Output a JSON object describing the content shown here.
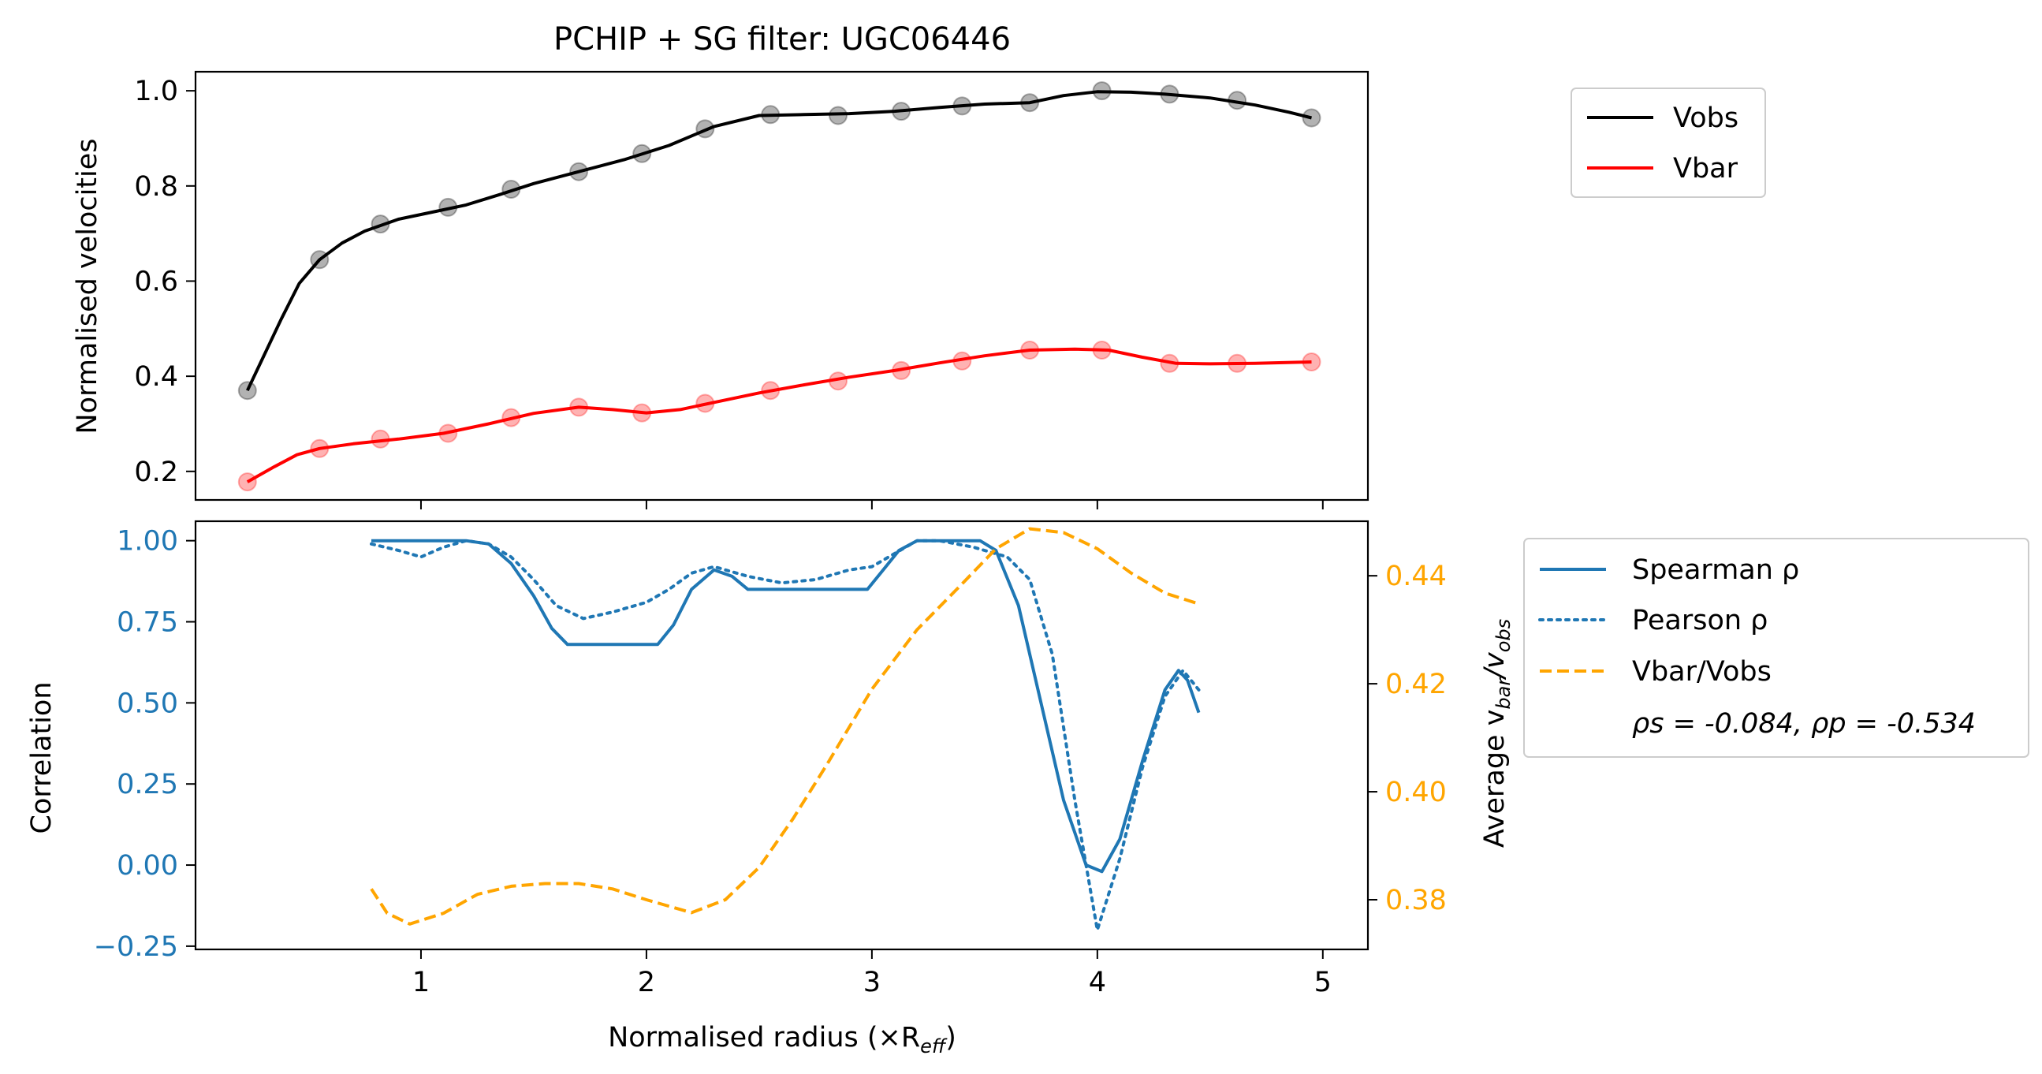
{
  "chart_data": [
    {
      "type": "line",
      "title": "PCHIP + SG filter: UGC06446",
      "xlabel": "",
      "ylabel": "Normalised velocities",
      "xlim": [
        0.0,
        5.2
      ],
      "ylim": [
        0.14,
        1.04
      ],
      "xticks": [
        1,
        2,
        3,
        4,
        5
      ],
      "yticks": [
        0.2,
        0.4,
        0.6,
        0.8,
        1.0
      ],
      "ytick_labels": [
        "0.2",
        "0.4",
        "0.6",
        "0.8",
        "1.0"
      ],
      "grid": false,
      "legend_position": "outside-right-top",
      "legend": [
        "Vobs",
        "Vbar"
      ],
      "series": [
        {
          "name": "Vobs",
          "color": "#000000",
          "style": "solid",
          "points_x": [
            0.23,
            0.55,
            0.82,
            1.12,
            1.4,
            1.7,
            1.98,
            2.26,
            2.55,
            2.85,
            3.13,
            3.4,
            3.7,
            4.02,
            4.32,
            4.62,
            4.95
          ],
          "points_y": [
            0.37,
            0.645,
            0.72,
            0.755,
            0.793,
            0.83,
            0.868,
            0.92,
            0.95,
            0.948,
            0.957,
            0.968,
            0.975,
            1.0,
            0.993,
            0.98,
            0.943
          ],
          "line_x": [
            0.23,
            0.3,
            0.38,
            0.46,
            0.55,
            0.65,
            0.75,
            0.9,
            1.05,
            1.2,
            1.35,
            1.5,
            1.7,
            1.9,
            2.1,
            2.3,
            2.5,
            2.7,
            2.9,
            3.1,
            3.3,
            3.5,
            3.7,
            3.85,
            4.0,
            4.15,
            4.3,
            4.5,
            4.7,
            4.85,
            4.95
          ],
          "line_y": [
            0.37,
            0.44,
            0.52,
            0.595,
            0.645,
            0.68,
            0.705,
            0.73,
            0.745,
            0.76,
            0.782,
            0.805,
            0.83,
            0.855,
            0.885,
            0.925,
            0.948,
            0.95,
            0.952,
            0.957,
            0.965,
            0.972,
            0.975,
            0.99,
            0.998,
            0.997,
            0.993,
            0.985,
            0.97,
            0.955,
            0.943
          ]
        },
        {
          "name": "Vbar",
          "color": "#ff0000",
          "style": "solid",
          "points_x": [
            0.23,
            0.55,
            0.82,
            1.12,
            1.4,
            1.7,
            1.98,
            2.26,
            2.55,
            2.85,
            3.13,
            3.4,
            3.7,
            4.02,
            4.32,
            4.62,
            4.95
          ],
          "points_y": [
            0.178,
            0.248,
            0.268,
            0.28,
            0.313,
            0.335,
            0.323,
            0.343,
            0.37,
            0.39,
            0.412,
            0.432,
            0.455,
            0.455,
            0.427,
            0.427,
            0.43
          ],
          "line_x": [
            0.23,
            0.35,
            0.45,
            0.55,
            0.7,
            0.9,
            1.1,
            1.3,
            1.5,
            1.7,
            1.85,
            2.0,
            2.15,
            2.3,
            2.5,
            2.7,
            2.9,
            3.1,
            3.3,
            3.5,
            3.7,
            3.9,
            4.05,
            4.2,
            4.35,
            4.5,
            4.7,
            4.95
          ],
          "line_y": [
            0.178,
            0.21,
            0.235,
            0.248,
            0.258,
            0.268,
            0.28,
            0.3,
            0.322,
            0.335,
            0.33,
            0.323,
            0.33,
            0.345,
            0.365,
            0.382,
            0.398,
            0.412,
            0.428,
            0.443,
            0.455,
            0.457,
            0.455,
            0.44,
            0.427,
            0.426,
            0.427,
            0.43
          ]
        }
      ]
    },
    {
      "type": "line",
      "title": "",
      "xlabel": "Normalised radius (×R",
      "xlabel_sub": "eff",
      "xlabel_close": ")",
      "ylabel": "Correlation",
      "y2label": "Average v",
      "y2label_sub1": "bar",
      "y2label_mid": "/v",
      "y2label_sub2": "obs",
      "xlim": [
        0.0,
        5.2
      ],
      "ylim": [
        -0.26,
        1.06
      ],
      "y2lim": [
        0.3708,
        0.4501
      ],
      "xticks": [
        1,
        2,
        3,
        4,
        5
      ],
      "xtick_labels": [
        "1",
        "2",
        "3",
        "4",
        "5"
      ],
      "yticks": [
        -0.25,
        0.0,
        0.25,
        0.5,
        0.75,
        1.0
      ],
      "ytick_labels": [
        "−0.25",
        "0.00",
        "0.25",
        "0.50",
        "0.75",
        "1.00"
      ],
      "y2ticks": [
        0.38,
        0.4,
        0.42,
        0.44
      ],
      "y2tick_labels": [
        "0.38",
        "0.40",
        "0.42",
        "0.44"
      ],
      "ytick_color": "#1f77b4",
      "y2tick_color": "#ffa500",
      "grid": false,
      "legend_position": "outside-right-top",
      "legend": [
        "Spearman ρ",
        "Pearson ρ",
        "Vbar/Vobs"
      ],
      "legend_note": "ρs = -0.084, ρp = -0.534",
      "series": [
        {
          "name": "Spearman ρ",
          "color": "#1f77b4",
          "style": "solid",
          "axis": "left",
          "x": [
            0.78,
            1.0,
            1.2,
            1.3,
            1.4,
            1.5,
            1.58,
            1.65,
            2.05,
            2.12,
            2.2,
            2.3,
            2.38,
            2.45,
            2.98,
            3.05,
            3.12,
            3.2,
            3.48,
            3.55,
            3.65,
            3.75,
            3.85,
            3.95,
            4.02,
            4.1,
            4.2,
            4.3,
            4.36,
            4.4,
            4.45
          ],
          "y": [
            1.0,
            1.0,
            1.0,
            0.99,
            0.93,
            0.83,
            0.73,
            0.68,
            0.68,
            0.74,
            0.85,
            0.91,
            0.89,
            0.85,
            0.85,
            0.91,
            0.97,
            1.0,
            1.0,
            0.97,
            0.8,
            0.5,
            0.2,
            0.0,
            -0.02,
            0.08,
            0.32,
            0.54,
            0.6,
            0.57,
            0.47
          ]
        },
        {
          "name": "Pearson ρ",
          "color": "#1f77b4",
          "style": "dotted",
          "axis": "left",
          "x": [
            0.78,
            0.9,
            1.0,
            1.1,
            1.2,
            1.3,
            1.4,
            1.5,
            1.6,
            1.72,
            1.85,
            2.0,
            2.1,
            2.2,
            2.3,
            2.45,
            2.6,
            2.75,
            2.9,
            3.0,
            3.1,
            3.2,
            3.3,
            3.45,
            3.6,
            3.7,
            3.8,
            3.9,
            4.0,
            4.1,
            4.2,
            4.3,
            4.38,
            4.45
          ],
          "y": [
            0.99,
            0.97,
            0.95,
            0.98,
            1.0,
            0.99,
            0.95,
            0.88,
            0.8,
            0.76,
            0.78,
            0.81,
            0.85,
            0.9,
            0.92,
            0.89,
            0.87,
            0.88,
            0.91,
            0.92,
            0.96,
            1.0,
            1.0,
            0.98,
            0.95,
            0.88,
            0.65,
            0.2,
            -0.2,
            0.02,
            0.3,
            0.52,
            0.6,
            0.54
          ]
        },
        {
          "name": "Vbar/Vobs",
          "color": "#ffa500",
          "style": "dashed",
          "axis": "right",
          "x": [
            0.78,
            0.85,
            0.95,
            1.1,
            1.25,
            1.4,
            1.55,
            1.7,
            1.85,
            2.0,
            2.2,
            2.35,
            2.5,
            2.65,
            2.8,
            3.0,
            3.2,
            3.4,
            3.55,
            3.7,
            3.85,
            4.0,
            4.15,
            4.3,
            4.45
          ],
          "y": [
            0.382,
            0.3775,
            0.3755,
            0.3775,
            0.381,
            0.3825,
            0.383,
            0.383,
            0.382,
            0.38,
            0.3776,
            0.38,
            0.386,
            0.395,
            0.405,
            0.419,
            0.43,
            0.4385,
            0.445,
            0.4487,
            0.448,
            0.445,
            0.4405,
            0.4368,
            0.4348
          ]
        }
      ]
    }
  ]
}
